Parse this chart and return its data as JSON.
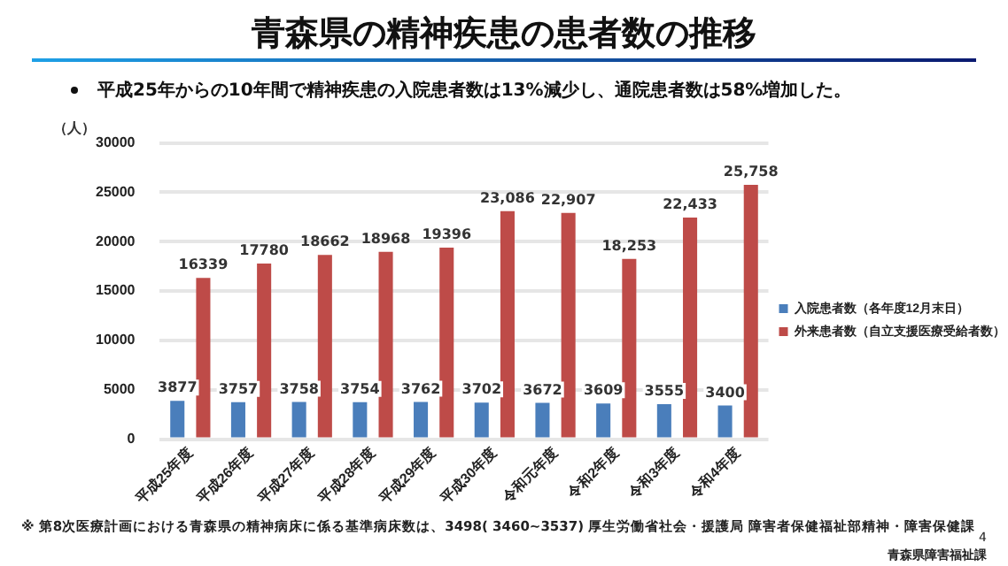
{
  "chart_data": {
    "type": "bar",
    "title": "青森県の精神疾患の患者数の推移",
    "subtitle": "平成25年からの10年間で精神疾患の入院患者数は13%減少し、通院患者数は58%増加した。",
    "ylabel": "（人）",
    "categories": [
      "平成25年度",
      "平成26年度",
      "平成27年度",
      "平成28年度",
      "平成29年度",
      "平成30年度",
      "令和元年度",
      "令和2年度",
      "令和3年度",
      "令和4年度"
    ],
    "series": [
      {
        "name": "入院患者数（各年度12月末日）",
        "color": "#4a7ebb",
        "values": [
          3877,
          3757,
          3758,
          3754,
          3762,
          3702,
          3672,
          3609,
          3555,
          3400
        ],
        "value_labels": [
          "3877",
          "3757",
          "3758",
          "3754",
          "3762",
          "3702",
          "3672",
          "3609",
          "3555",
          "3400"
        ]
      },
      {
        "name": "外来患者数（自立支援医療受給者数）",
        "color": "#be4b48",
        "values": [
          16339,
          17780,
          18662,
          18968,
          19396,
          23086,
          22907,
          18253,
          22433,
          25758
        ],
        "value_labels": [
          "16339",
          "17780",
          "18662",
          "18968",
          "19396",
          "23,086",
          "22,907",
          "18,253",
          "22,433",
          "25,758"
        ]
      }
    ],
    "ylim": [
      0,
      30000
    ],
    "yticks": [
      0,
      5000,
      10000,
      15000,
      20000,
      25000,
      30000
    ],
    "grid": "y",
    "legend": "right",
    "annotations": [
      "※ 第8次医療計画における青森県の精神病床に係る基準病床数は、3498( 3460~3537) 厚生労働省社会・援護局 障害者保健福祉部精神・障害保健課",
      "4",
      "青森県障害福祉課"
    ]
  }
}
